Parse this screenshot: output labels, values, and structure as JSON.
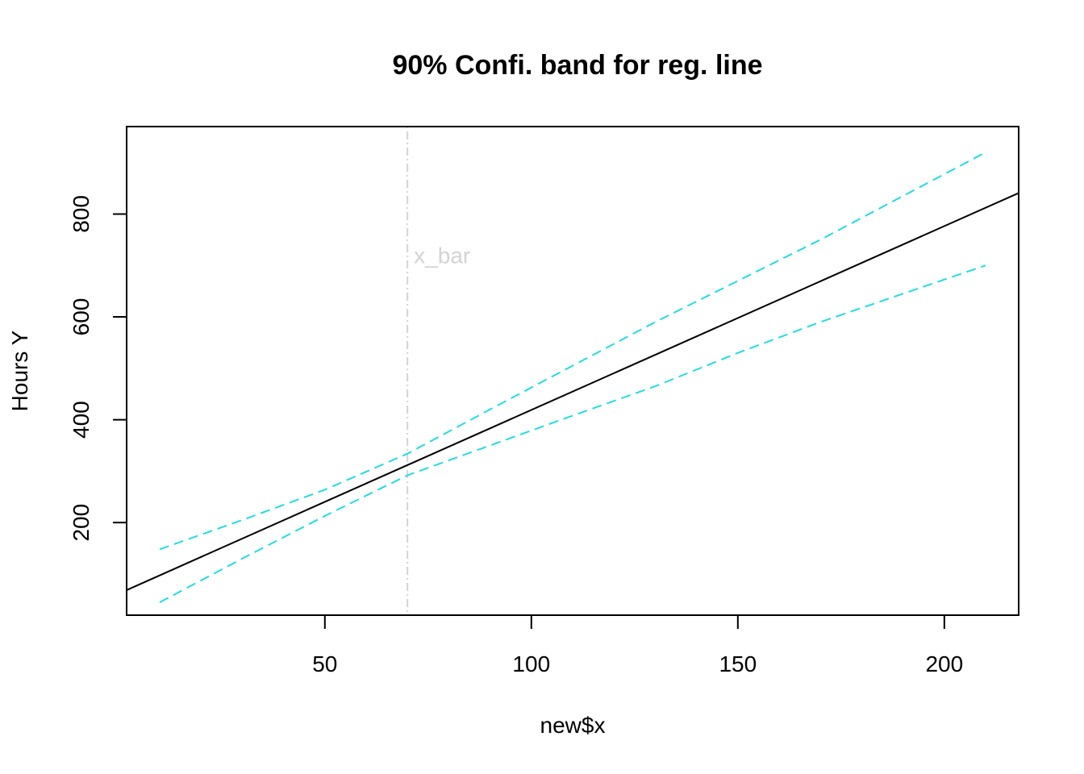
{
  "chart_data": {
    "type": "line",
    "title": "90% Confi. band for reg. line",
    "xlabel": "new$x",
    "ylabel": "Hours Y",
    "xlim": [
      2,
      218
    ],
    "ylim": [
      20,
      970
    ],
    "x_ticks": [
      50,
      100,
      150,
      200
    ],
    "y_ticks": [
      200,
      400,
      600,
      800
    ],
    "grid": false,
    "series": [
      {
        "role": "fit",
        "color": "#000000",
        "dash": "solid",
        "points": [
          [
            2,
            68.8
          ],
          [
            218,
            840.8
          ]
        ]
      },
      {
        "role": "upper",
        "color": "#22DDDD",
        "dash": "dashed",
        "points": [
          [
            10,
            148
          ],
          [
            30,
            205
          ],
          [
            50,
            264
          ],
          [
            70,
            334
          ],
          [
            90,
            420
          ],
          [
            110,
            505
          ],
          [
            130,
            590
          ],
          [
            150,
            670
          ],
          [
            170,
            750
          ],
          [
            190,
            835
          ],
          [
            210,
            920
          ]
        ]
      },
      {
        "role": "lower",
        "color": "#22DDDD",
        "dash": "dashed",
        "points": [
          [
            10,
            45
          ],
          [
            30,
            130
          ],
          [
            50,
            213
          ],
          [
            70,
            292
          ],
          [
            90,
            350
          ],
          [
            110,
            408
          ],
          [
            130,
            465
          ],
          [
            150,
            530
          ],
          [
            170,
            590
          ],
          [
            190,
            645
          ],
          [
            210,
            700
          ]
        ]
      }
    ],
    "reference_line": {
      "x": 70,
      "label": "x_bar",
      "label_y": 720,
      "color": "#D3D3D3",
      "dash": "dotdash"
    }
  }
}
